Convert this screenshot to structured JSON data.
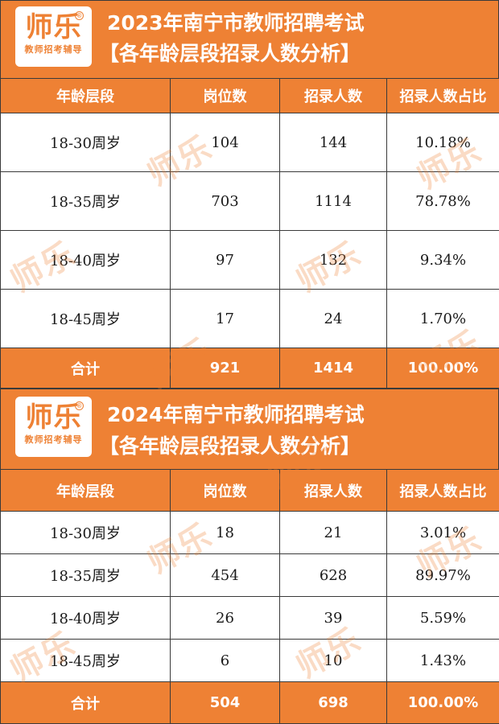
{
  "brand": {
    "logo_text": "师乐",
    "registered_mark": "®",
    "logo_subtitle": "教师招考辅导"
  },
  "columns": [
    "年龄层段",
    "岗位数",
    "招录人数",
    "招录人数占比"
  ],
  "sections": [
    {
      "title_line1": "2023年南宁市教师招聘考试",
      "title_line2": "【各年龄层段招录人数分析】",
      "rows": [
        {
          "age": "18-30周岁",
          "posts": "104",
          "hires": "144",
          "ratio": "10.18%"
        },
        {
          "age": "18-35周岁",
          "posts": "703",
          "hires": "1114",
          "ratio": "78.78%"
        },
        {
          "age": "18-40周岁",
          "posts": "97",
          "hires": "132",
          "ratio": "9.34%"
        },
        {
          "age": "18-45周岁",
          "posts": "17",
          "hires": "24",
          "ratio": "1.70%"
        }
      ],
      "total": {
        "label": "合计",
        "posts": "921",
        "hires": "1414",
        "ratio": "100.00%"
      }
    },
    {
      "title_line1": "2024年南宁市教师招聘考试",
      "title_line2": "【各年龄层段招录人数分析】",
      "rows": [
        {
          "age": "18-30周岁",
          "posts": "18",
          "hires": "21",
          "ratio": "3.01%"
        },
        {
          "age": "18-35周岁",
          "posts": "454",
          "hires": "628",
          "ratio": "89.97%"
        },
        {
          "age": "18-40周岁",
          "posts": "26",
          "hires": "39",
          "ratio": "5.59%"
        },
        {
          "age": "18-45周岁",
          "posts": "6",
          "hires": "10",
          "ratio": "1.43%"
        }
      ],
      "total": {
        "label": "合计",
        "posts": "504",
        "hires": "698",
        "ratio": "100.00%"
      }
    }
  ],
  "colors": {
    "accent": "#ee8134",
    "border": "#3a3a3a",
    "text": "#1a1a1a"
  }
}
